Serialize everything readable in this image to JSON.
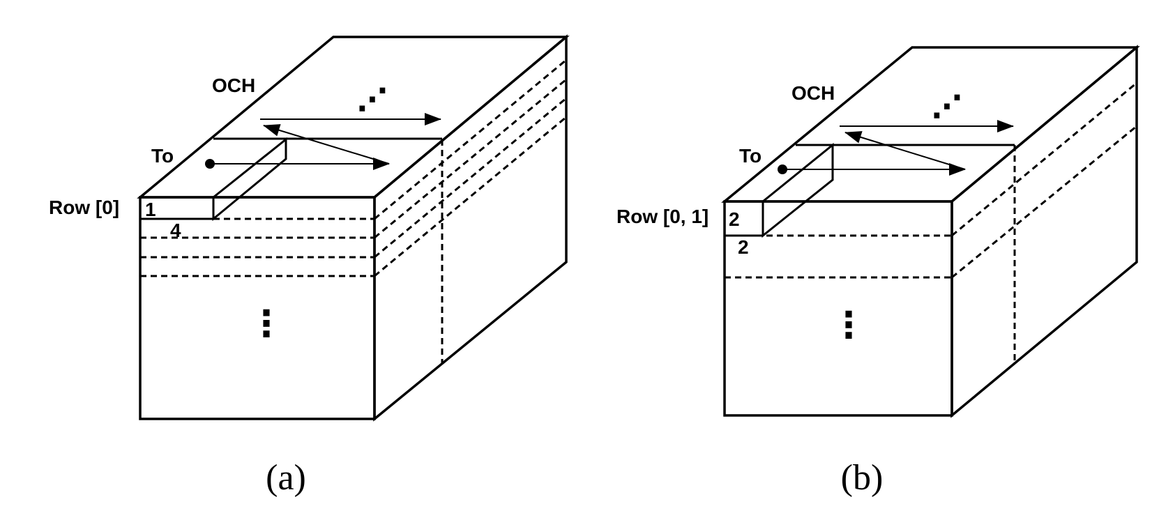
{
  "panels": [
    {
      "caption": "(a)",
      "och_label": "OCH",
      "to_label": "To",
      "row_label": "Row [0]",
      "tile_height_label": "1",
      "tile_width_label": "4",
      "front_ellipsis": "⋮",
      "top_ellipsis": "⋰"
    },
    {
      "caption": "(b)",
      "och_label": "OCH",
      "to_label": "To",
      "row_label": "Row [0, 1]",
      "tile_height_label": "2",
      "tile_width_label": "2",
      "front_ellipsis": "⋮",
      "top_ellipsis": "⋰"
    }
  ],
  "colors": {
    "stroke": "#000000",
    "side_face": "#d9d9d9",
    "front_face": "#ffffff",
    "top_face": "#ffffff"
  }
}
